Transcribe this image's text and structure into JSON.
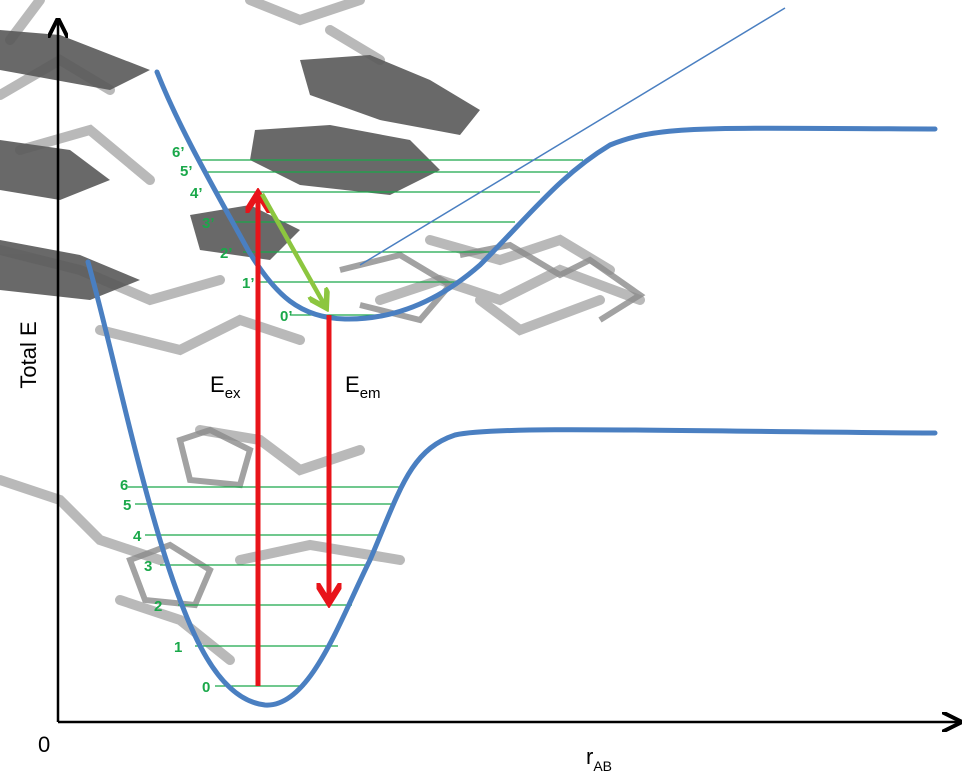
{
  "axes": {
    "y_label": "Total E",
    "x_label_main": "r",
    "x_label_sub": "AB",
    "origin_label": "0"
  },
  "transitions": {
    "excitation": {
      "main": "E",
      "sub": "ex"
    },
    "emission": {
      "main": "E",
      "sub": "em"
    }
  },
  "ground_levels": [
    "0",
    "1",
    "2",
    "3",
    "4",
    "5",
    "6"
  ],
  "excited_levels": [
    "0’",
    "1’",
    "2’",
    "3’",
    "4’",
    "5’",
    "6’"
  ],
  "colors": {
    "curve": "#4a7fc1",
    "levels": "#1aa84a",
    "arrow_vertical": "#e8141a",
    "arrow_relax": "#8cc63f",
    "molecule": "#5a5a5a"
  },
  "background_icon": "dna-double-helix-molecule"
}
